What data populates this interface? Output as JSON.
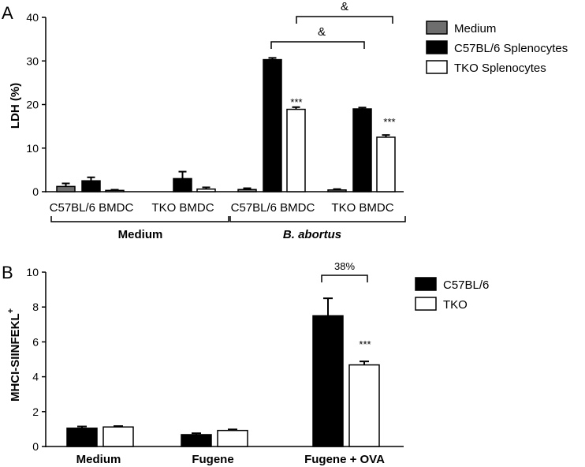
{
  "colors": {
    "medium": "#6e6e6e",
    "wt": "#000000",
    "tko": "#ffffff",
    "stroke": "#000000"
  },
  "chart_data": [
    {
      "panel_label": "A",
      "type": "bar",
      "ylabel": "LDH (%)",
      "ylim": [
        0,
        40
      ],
      "yticks": [
        "0",
        "10",
        "20",
        "30",
        "40"
      ],
      "categories": [
        "C57BL/6 BMDC",
        "TKO BMDC",
        "C57BL/6 BMDC",
        "TKO BMDC"
      ],
      "groups": [
        "Medium",
        "B. abortus"
      ],
      "series": [
        {
          "name": "Medium",
          "values": [
            1.2,
            null,
            0.5,
            0.4
          ],
          "errors": [
            0.7,
            null,
            0.3,
            0.2
          ]
        },
        {
          "name": "C57BL/6 Splenocytes",
          "values": [
            2.5,
            3.0,
            30.3,
            19.0
          ],
          "errors": [
            0.8,
            1.6,
            0.4,
            0.3
          ]
        },
        {
          "name": " TKO Splenocytes",
          "values": [
            0.3,
            0.6,
            18.9,
            12.5
          ],
          "errors": [
            0.15,
            0.4,
            0.5,
            0.5
          ]
        }
      ],
      "annotations": [
        "***",
        "***",
        "&",
        "&"
      ],
      "legend": "right"
    },
    {
      "panel_label": "B",
      "type": "bar",
      "ylabel": "MHCI-SIINFEKL",
      "ylabel_sup": "+",
      "ylim": [
        0,
        10
      ],
      "yticks": [
        "0",
        "2",
        "4",
        "6",
        "8",
        "10"
      ],
      "categories": [
        "Medium",
        "Fugene",
        "Fugene + OVA"
      ],
      "series": [
        {
          "name": "C57BL/6",
          "values": [
            1.05,
            0.68,
            7.5
          ],
          "errors": [
            0.1,
            0.08,
            1.0
          ]
        },
        {
          "name": "TKO",
          "values": [
            1.12,
            0.92,
            4.68
          ],
          "errors": [
            0.05,
            0.06,
            0.2
          ]
        }
      ],
      "annotations": [
        "***",
        "38%"
      ],
      "legend": "right"
    }
  ]
}
